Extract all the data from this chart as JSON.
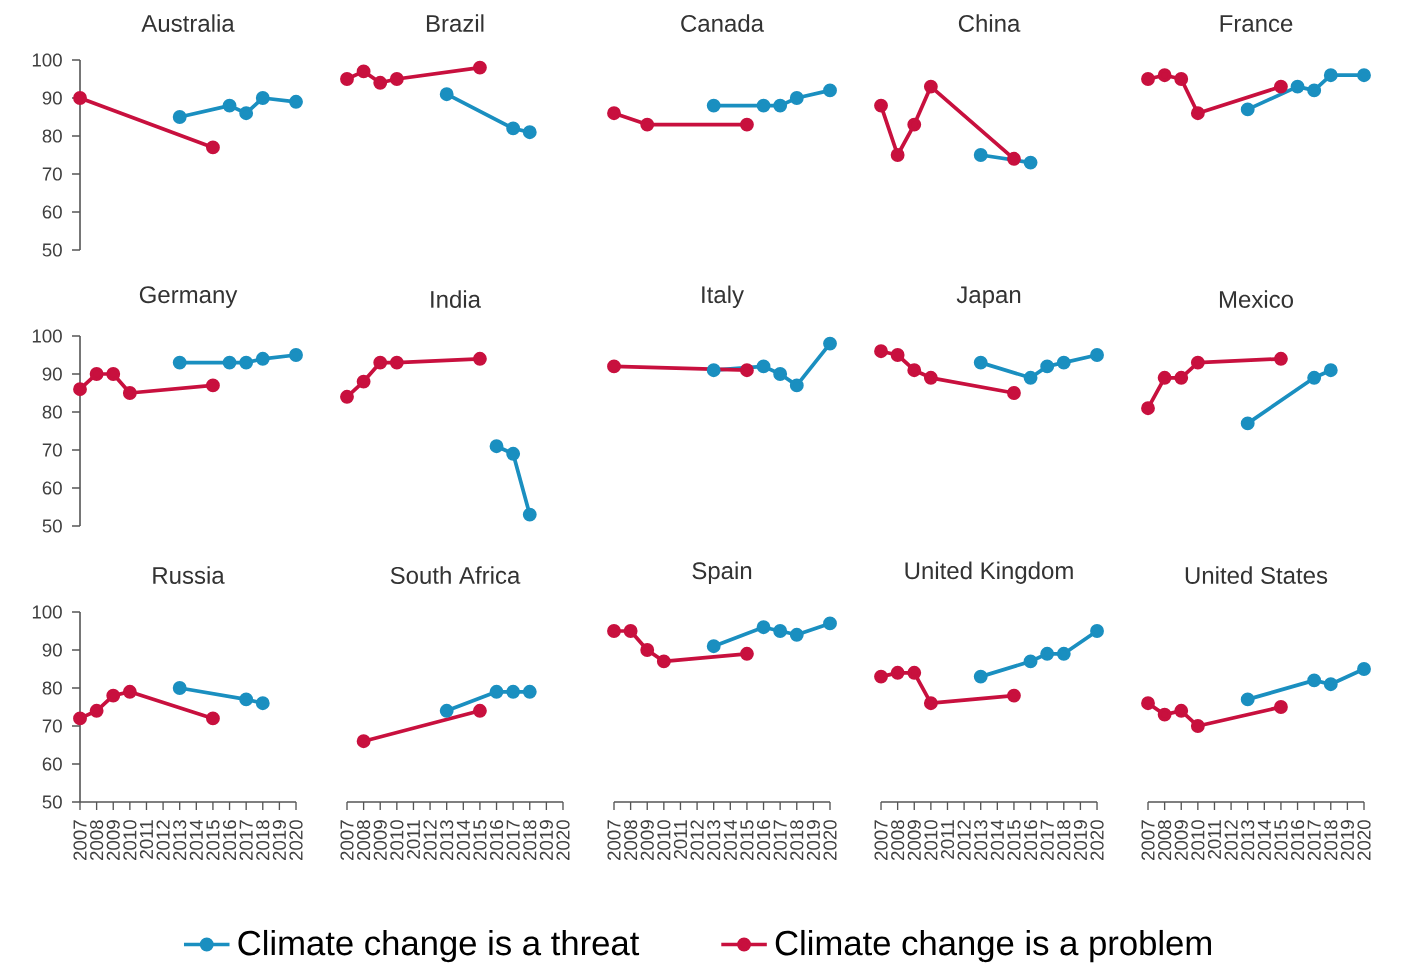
{
  "chart_data": [
    {
      "type": "line",
      "title": "Australia",
      "xlim": [
        2007,
        2020
      ],
      "ylim": [
        50,
        100
      ],
      "xticks": [
        2007,
        2008,
        2009,
        2010,
        2011,
        2012,
        2013,
        2014,
        2015,
        2016,
        2017,
        2018,
        2019,
        2020
      ],
      "yticks": [
        50,
        60,
        70,
        80,
        90,
        100
      ],
      "tick_labels": "y",
      "marker": "circle",
      "series": [
        {
          "color": "#1a8fc0",
          "x": [
            2013,
            2016,
            2017,
            2018,
            2020
          ],
          "values": [
            85,
            88,
            86,
            90,
            89
          ]
        },
        {
          "color": "#c8103e",
          "x": [
            2007,
            2015
          ],
          "values": [
            90,
            77
          ]
        }
      ]
    },
    {
      "type": "line",
      "title": "Brazil",
      "xlim": [
        2007,
        2020
      ],
      "ylim": [
        50,
        100
      ],
      "xticks": [
        2007,
        2008,
        2009,
        2010,
        2011,
        2012,
        2013,
        2014,
        2015,
        2016,
        2017,
        2018,
        2019,
        2020
      ],
      "yticks": [
        50,
        60,
        70,
        80,
        90,
        100
      ],
      "tick_labels": false,
      "marker": "circle",
      "series": [
        {
          "color": "#1a8fc0",
          "x": [
            2013,
            2017,
            2018
          ],
          "values": [
            91,
            82,
            81
          ]
        },
        {
          "color": "#c8103e",
          "x": [
            2007,
            2008,
            2009,
            2010,
            2015
          ],
          "values": [
            95,
            97,
            94,
            95,
            98
          ]
        }
      ]
    },
    {
      "type": "line",
      "title": "Canada",
      "xlim": [
        2007,
        2020
      ],
      "ylim": [
        50,
        100
      ],
      "xticks": [
        2007,
        2008,
        2009,
        2010,
        2011,
        2012,
        2013,
        2014,
        2015,
        2016,
        2017,
        2018,
        2019,
        2020
      ],
      "yticks": [
        50,
        60,
        70,
        80,
        90,
        100
      ],
      "tick_labels": false,
      "marker": "circle",
      "series": [
        {
          "color": "#1a8fc0",
          "x": [
            2013,
            2016,
            2017,
            2018,
            2020
          ],
          "values": [
            88,
            88,
            88,
            90,
            92
          ]
        },
        {
          "color": "#c8103e",
          "x": [
            2007,
            2009,
            2015
          ],
          "values": [
            86,
            83,
            83
          ]
        }
      ]
    },
    {
      "type": "line",
      "title": "China",
      "xlim": [
        2007,
        2020
      ],
      "ylim": [
        50,
        100
      ],
      "xticks": [
        2007,
        2008,
        2009,
        2010,
        2011,
        2012,
        2013,
        2014,
        2015,
        2016,
        2017,
        2018,
        2019,
        2020
      ],
      "yticks": [
        50,
        60,
        70,
        80,
        90,
        100
      ],
      "tick_labels": false,
      "marker": "circle",
      "series": [
        {
          "color": "#1a8fc0",
          "x": [
            2013,
            2016
          ],
          "values": [
            75,
            73
          ]
        },
        {
          "color": "#c8103e",
          "x": [
            2007,
            2008,
            2009,
            2010,
            2015
          ],
          "values": [
            88,
            75,
            83,
            93,
            74
          ]
        }
      ]
    },
    {
      "type": "line",
      "title": "France",
      "xlim": [
        2007,
        2020
      ],
      "ylim": [
        50,
        100
      ],
      "xticks": [
        2007,
        2008,
        2009,
        2010,
        2011,
        2012,
        2013,
        2014,
        2015,
        2016,
        2017,
        2018,
        2019,
        2020
      ],
      "yticks": [
        50,
        60,
        70,
        80,
        90,
        100
      ],
      "tick_labels": false,
      "marker": "circle",
      "series": [
        {
          "color": "#1a8fc0",
          "x": [
            2013,
            2016,
            2017,
            2018,
            2020
          ],
          "values": [
            87,
            93,
            92,
            96,
            96
          ]
        },
        {
          "color": "#c8103e",
          "x": [
            2007,
            2008,
            2009,
            2010,
            2015
          ],
          "values": [
            95,
            96,
            95,
            86,
            93
          ]
        }
      ]
    },
    {
      "type": "line",
      "title": "Germany",
      "xlim": [
        2007,
        2020
      ],
      "ylim": [
        50,
        100
      ],
      "xticks": [
        2007,
        2008,
        2009,
        2010,
        2011,
        2012,
        2013,
        2014,
        2015,
        2016,
        2017,
        2018,
        2019,
        2020
      ],
      "yticks": [
        50,
        60,
        70,
        80,
        90,
        100
      ],
      "tick_labels": "y",
      "marker": "circle",
      "series": [
        {
          "color": "#1a8fc0",
          "x": [
            2013,
            2016,
            2017,
            2018,
            2020
          ],
          "values": [
            93,
            93,
            93,
            94,
            95
          ]
        },
        {
          "color": "#c8103e",
          "x": [
            2007,
            2008,
            2009,
            2010,
            2015
          ],
          "values": [
            86,
            90,
            90,
            85,
            87
          ]
        }
      ]
    },
    {
      "type": "line",
      "title": "India",
      "xlim": [
        2007,
        2020
      ],
      "ylim": [
        50,
        100
      ],
      "xticks": [
        2007,
        2008,
        2009,
        2010,
        2011,
        2012,
        2013,
        2014,
        2015,
        2016,
        2017,
        2018,
        2019,
        2020
      ],
      "yticks": [
        50,
        60,
        70,
        80,
        90,
        100
      ],
      "tick_labels": false,
      "marker": "circle",
      "series": [
        {
          "color": "#1a8fc0",
          "x": [
            2016,
            2017,
            2018
          ],
          "values": [
            71,
            69,
            53
          ]
        },
        {
          "color": "#c8103e",
          "x": [
            2007,
            2008,
            2009,
            2010,
            2015
          ],
          "values": [
            84,
            88,
            93,
            93,
            94
          ]
        }
      ]
    },
    {
      "type": "line",
      "title": "Italy",
      "xlim": [
        2007,
        2020
      ],
      "ylim": [
        50,
        100
      ],
      "xticks": [
        2007,
        2008,
        2009,
        2010,
        2011,
        2012,
        2013,
        2014,
        2015,
        2016,
        2017,
        2018,
        2019,
        2020
      ],
      "yticks": [
        50,
        60,
        70,
        80,
        90,
        100
      ],
      "tick_labels": false,
      "marker": "circle",
      "series": [
        {
          "color": "#1a8fc0",
          "x": [
            2013,
            2016,
            2017,
            2018,
            2020
          ],
          "values": [
            91,
            92,
            90,
            87,
            98
          ]
        },
        {
          "color": "#c8103e",
          "x": [
            2007,
            2015
          ],
          "values": [
            92,
            91
          ]
        }
      ]
    },
    {
      "type": "line",
      "title": "Japan",
      "xlim": [
        2007,
        2020
      ],
      "ylim": [
        50,
        100
      ],
      "xticks": [
        2007,
        2008,
        2009,
        2010,
        2011,
        2012,
        2013,
        2014,
        2015,
        2016,
        2017,
        2018,
        2019,
        2020
      ],
      "yticks": [
        50,
        60,
        70,
        80,
        90,
        100
      ],
      "tick_labels": false,
      "marker": "circle",
      "series": [
        {
          "color": "#1a8fc0",
          "x": [
            2013,
            2016,
            2017,
            2018,
            2020
          ],
          "values": [
            93,
            89,
            92,
            93,
            95
          ]
        },
        {
          "color": "#c8103e",
          "x": [
            2007,
            2008,
            2009,
            2010,
            2015
          ],
          "values": [
            96,
            95,
            91,
            89,
            85
          ]
        }
      ]
    },
    {
      "type": "line",
      "title": "Mexico",
      "xlim": [
        2007,
        2020
      ],
      "ylim": [
        50,
        100
      ],
      "xticks": [
        2007,
        2008,
        2009,
        2010,
        2011,
        2012,
        2013,
        2014,
        2015,
        2016,
        2017,
        2018,
        2019,
        2020
      ],
      "yticks": [
        50,
        60,
        70,
        80,
        90,
        100
      ],
      "tick_labels": false,
      "marker": "circle",
      "series": [
        {
          "color": "#1a8fc0",
          "x": [
            2013,
            2017,
            2018
          ],
          "values": [
            77,
            89,
            91
          ]
        },
        {
          "color": "#c8103e",
          "x": [
            2007,
            2008,
            2009,
            2010,
            2015
          ],
          "values": [
            81,
            89,
            89,
            93,
            94
          ]
        }
      ]
    },
    {
      "type": "line",
      "title": "Russia",
      "xlim": [
        2007,
        2020
      ],
      "ylim": [
        50,
        100
      ],
      "xticks": [
        2007,
        2008,
        2009,
        2010,
        2011,
        2012,
        2013,
        2014,
        2015,
        2016,
        2017,
        2018,
        2019,
        2020
      ],
      "yticks": [
        50,
        60,
        70,
        80,
        90,
        100
      ],
      "marker": "circle",
      "series": [
        {
          "color": "#1a8fc0",
          "x": [
            2013,
            2017,
            2018
          ],
          "values": [
            80,
            77,
            76
          ]
        },
        {
          "color": "#c8103e",
          "x": [
            2007,
            2008,
            2009,
            2010,
            2015
          ],
          "values": [
            72,
            74,
            78,
            79,
            72
          ]
        }
      ]
    },
    {
      "type": "line",
      "title": "South Africa",
      "xlim": [
        2007,
        2020
      ],
      "ylim": [
        50,
        100
      ],
      "xticks": [
        2007,
        2008,
        2009,
        2010,
        2011,
        2012,
        2013,
        2014,
        2015,
        2016,
        2017,
        2018,
        2019,
        2020
      ],
      "yticks": [
        50,
        60,
        70,
        80,
        90,
        100
      ],
      "tick_labels": "x",
      "marker": "circle",
      "series": [
        {
          "color": "#1a8fc0",
          "x": [
            2013,
            2016,
            2017,
            2018
          ],
          "values": [
            74,
            79,
            79,
            79
          ]
        },
        {
          "color": "#c8103e",
          "x": [
            2008,
            2015
          ],
          "values": [
            66,
            74
          ]
        }
      ]
    },
    {
      "type": "line",
      "title": "Spain",
      "xlim": [
        2007,
        2020
      ],
      "ylim": [
        50,
        100
      ],
      "xticks": [
        2007,
        2008,
        2009,
        2010,
        2011,
        2012,
        2013,
        2014,
        2015,
        2016,
        2017,
        2018,
        2019,
        2020
      ],
      "yticks": [
        50,
        60,
        70,
        80,
        90,
        100
      ],
      "tick_labels": "x",
      "marker": "circle",
      "legend": "bottom",
      "series": [
        {
          "name": "Climate change is a threat",
          "color": "#1a8fc0",
          "x": [
            2013,
            2016,
            2017,
            2018,
            2020
          ],
          "values": [
            91,
            96,
            95,
            94,
            97
          ]
        },
        {
          "name": "Climate change is a problem",
          "color": "#c8103e",
          "x": [
            2007,
            2008,
            2009,
            2010,
            2015
          ],
          "values": [
            95,
            95,
            90,
            87,
            89
          ]
        }
      ]
    },
    {
      "type": "line",
      "title": "United Kingdom",
      "xlim": [
        2007,
        2020
      ],
      "ylim": [
        50,
        100
      ],
      "xticks": [
        2007,
        2008,
        2009,
        2010,
        2011,
        2012,
        2013,
        2014,
        2015,
        2016,
        2017,
        2018,
        2019,
        2020
      ],
      "yticks": [
        50,
        60,
        70,
        80,
        90,
        100
      ],
      "tick_labels": "x",
      "marker": "circle",
      "series": [
        {
          "color": "#1a8fc0",
          "x": [
            2013,
            2016,
            2017,
            2018,
            2020
          ],
          "values": [
            83,
            87,
            89,
            89,
            95
          ]
        },
        {
          "color": "#c8103e",
          "x": [
            2007,
            2008,
            2009,
            2010,
            2015
          ],
          "values": [
            83,
            84,
            84,
            76,
            78
          ]
        }
      ]
    },
    {
      "type": "line",
      "title": "United States",
      "xlim": [
        2007,
        2020
      ],
      "ylim": [
        50,
        100
      ],
      "xticks": [
        2007,
        2008,
        2009,
        2010,
        2011,
        2012,
        2013,
        2014,
        2015,
        2016,
        2017,
        2018,
        2019,
        2020
      ],
      "yticks": [
        50,
        60,
        70,
        80,
        90,
        100
      ],
      "tick_labels": "x",
      "marker": "circle",
      "series": [
        {
          "color": "#1a8fc0",
          "x": [
            2013,
            2017,
            2018,
            2020
          ],
          "values": [
            77,
            82,
            81,
            85
          ]
        },
        {
          "color": "#c8103e",
          "x": [
            2007,
            2008,
            2009,
            2010,
            2015
          ],
          "values": [
            76,
            73,
            74,
            70,
            75
          ]
        }
      ]
    }
  ]
}
